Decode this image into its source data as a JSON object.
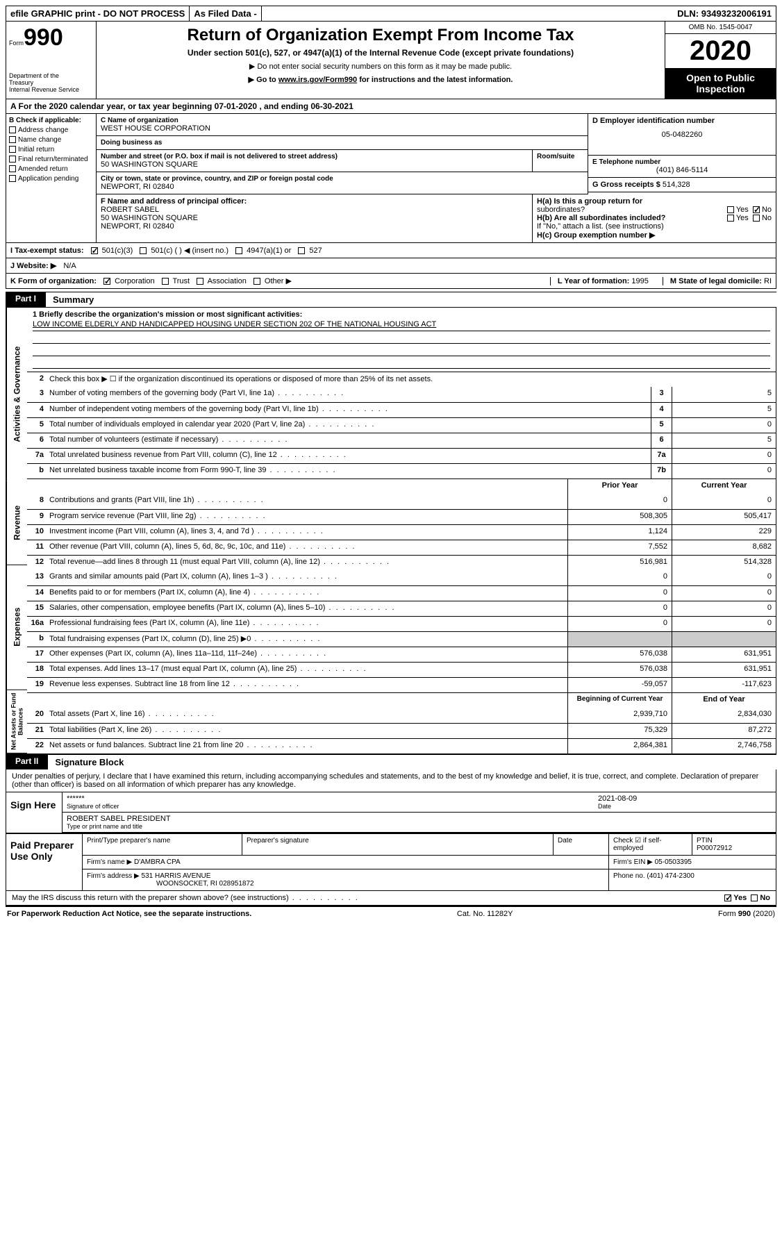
{
  "topbar": {
    "efile": "efile GRAPHIC print - DO NOT PROCESS",
    "asfiled": "As Filed Data -",
    "dln_label": "DLN:",
    "dln": "93493232006191"
  },
  "header": {
    "form_prefix": "Form",
    "form_number": "990",
    "dept1": "Department of the",
    "dept2": "Treasury",
    "dept3": "Internal Revenue Service",
    "title": "Return of Organization Exempt From Income Tax",
    "subtitle": "Under section 501(c), 527, or 4947(a)(1) of the Internal Revenue Code (except private foundations)",
    "note1": "▶ Do not enter social security numbers on this form as it may be made public.",
    "note2_pre": "▶ Go to ",
    "note2_link": "www.irs.gov/Form990",
    "note2_post": " for instructions and the latest information.",
    "omb": "OMB No. 1545-0047",
    "year": "2020",
    "inspect": "Open to Public Inspection"
  },
  "row_a": "A   For the 2020 calendar year, or tax year beginning 07-01-2020   , and ending 06-30-2021",
  "col_b": {
    "label": "B Check if applicable:",
    "items": [
      "Address change",
      "Name change",
      "Initial return",
      "Final return/terminated",
      "Amended return",
      "Application pending"
    ]
  },
  "col_c": {
    "c_label": "C Name of organization",
    "org": "WEST HOUSE CORPORATION",
    "dba_label": "Doing business as",
    "addr_label": "Number and street (or P.O. box if mail is not delivered to street address)",
    "room_label": "Room/suite",
    "addr": "50 WASHINGTON SQUARE",
    "city_label": "City or town, state or province, country, and ZIP or foreign postal code",
    "city": "NEWPORT, RI  02840",
    "f_label": "F  Name and address of principal officer:",
    "f_name": "ROBERT SABEL",
    "f_addr1": "50 WASHINGTON SQUARE",
    "f_addr2": "NEWPORT, RI  02840"
  },
  "col_d": {
    "d_label": "D Employer identification number",
    "ein": "05-0482260",
    "e_label": "E Telephone number",
    "phone": "(401) 846-5114",
    "g_label": "G Gross receipts $",
    "gross": "514,328"
  },
  "h": {
    "ha_label": "H(a)  Is this a group return for",
    "ha_sub": "subordinates?",
    "hb_label": "H(b)  Are all subordinates included?",
    "hb_note": "If \"No,\" attach a list. (see instructions)",
    "hc_label": "H(c)  Group exemption number ▶",
    "yes": "Yes",
    "no": "No"
  },
  "row_i": {
    "label": "I   Tax-exempt status:",
    "opts": [
      "501(c)(3)",
      "501(c) (   ) ◀ (insert no.)",
      "4947(a)(1) or",
      "527"
    ]
  },
  "row_j": {
    "label": "J   Website: ▶",
    "value": "N/A"
  },
  "row_k": {
    "label": "K Form of organization:",
    "opts": [
      "Corporation",
      "Trust",
      "Association",
      "Other ▶"
    ],
    "l_label": "L Year of formation:",
    "l_val": "1995",
    "m_label": "M State of legal domicile:",
    "m_val": "RI"
  },
  "part1": {
    "tag": "Part I",
    "title": "Summary"
  },
  "part2": {
    "tag": "Part II",
    "title": "Signature Block"
  },
  "vtabs": [
    "Activities & Governance",
    "Revenue",
    "Expenses",
    "Net Assets or Fund Balances"
  ],
  "summary": {
    "l1_label": "1 Briefly describe the organization's mission or most significant activities:",
    "l1_text": "LOW INCOME ELDERLY AND HANDICAPPED HOUSING UNDER SECTION 202 OF THE NATIONAL HOUSING ACT",
    "l2": "Check this box ▶ ☐ if the organization discontinued its operations or disposed of more than 25% of its net assets.",
    "lines_ag": [
      {
        "n": "3",
        "t": "Number of voting members of the governing body (Part VI, line 1a)",
        "box": "3",
        "v": "5"
      },
      {
        "n": "4",
        "t": "Number of independent voting members of the governing body (Part VI, line 1b)",
        "box": "4",
        "v": "5"
      },
      {
        "n": "5",
        "t": "Total number of individuals employed in calendar year 2020 (Part V, line 2a)",
        "box": "5",
        "v": "0"
      },
      {
        "n": "6",
        "t": "Total number of volunteers (estimate if necessary)",
        "box": "6",
        "v": "5"
      },
      {
        "n": "7a",
        "t": "Total unrelated business revenue from Part VIII, column (C), line 12",
        "box": "7a",
        "v": "0"
      },
      {
        "n": "b",
        "t": "Net unrelated business taxable income from Form 990-T, line 39",
        "box": "7b",
        "v": "0"
      }
    ],
    "hdr_prior": "Prior Year",
    "hdr_current": "Current Year",
    "lines_rev": [
      {
        "n": "8",
        "t": "Contributions and grants (Part VIII, line 1h)",
        "p": "0",
        "c": "0"
      },
      {
        "n": "9",
        "t": "Program service revenue (Part VIII, line 2g)",
        "p": "508,305",
        "c": "505,417"
      },
      {
        "n": "10",
        "t": "Investment income (Part VIII, column (A), lines 3, 4, and 7d )",
        "p": "1,124",
        "c": "229"
      },
      {
        "n": "11",
        "t": "Other revenue (Part VIII, column (A), lines 5, 6d, 8c, 9c, 10c, and 11e)",
        "p": "7,552",
        "c": "8,682"
      },
      {
        "n": "12",
        "t": "Total revenue—add lines 8 through 11 (must equal Part VIII, column (A), line 12)",
        "p": "516,981",
        "c": "514,328"
      }
    ],
    "lines_exp": [
      {
        "n": "13",
        "t": "Grants and similar amounts paid (Part IX, column (A), lines 1–3 )",
        "p": "0",
        "c": "0"
      },
      {
        "n": "14",
        "t": "Benefits paid to or for members (Part IX, column (A), line 4)",
        "p": "0",
        "c": "0"
      },
      {
        "n": "15",
        "t": "Salaries, other compensation, employee benefits (Part IX, column (A), lines 5–10)",
        "p": "0",
        "c": "0"
      },
      {
        "n": "16a",
        "t": "Professional fundraising fees (Part IX, column (A), line 11e)",
        "p": "0",
        "c": "0"
      },
      {
        "n": "b",
        "t": "Total fundraising expenses (Part IX, column (D), line 25) ▶0",
        "p": "",
        "c": ""
      },
      {
        "n": "17",
        "t": "Other expenses (Part IX, column (A), lines 11a–11d, 11f–24e)",
        "p": "576,038",
        "c": "631,951"
      },
      {
        "n": "18",
        "t": "Total expenses. Add lines 13–17 (must equal Part IX, column (A), line 25)",
        "p": "576,038",
        "c": "631,951"
      },
      {
        "n": "19",
        "t": "Revenue less expenses. Subtract line 18 from line 12",
        "p": "-59,057",
        "c": "-117,623"
      }
    ],
    "hdr_beg": "Beginning of Current Year",
    "hdr_end": "End of Year",
    "lines_net": [
      {
        "n": "20",
        "t": "Total assets (Part X, line 16)",
        "p": "2,939,710",
        "c": "2,834,030"
      },
      {
        "n": "21",
        "t": "Total liabilities (Part X, line 26)",
        "p": "75,329",
        "c": "87,272"
      },
      {
        "n": "22",
        "t": "Net assets or fund balances. Subtract line 21 from line 20",
        "p": "2,864,381",
        "c": "2,746,758"
      }
    ]
  },
  "sig": {
    "intro": "Under penalties of perjury, I declare that I have examined this return, including accompanying schedules and statements, and to the best of my knowledge and belief, it is true, correct, and complete. Declaration of preparer (other than officer) is based on all information of which preparer has any knowledge.",
    "sign_here": "Sign Here",
    "stars": "******",
    "sig_of_officer": "Signature of officer",
    "date_label": "Date",
    "date": "2021-08-09",
    "name_title": "ROBERT SABEL PRESIDENT",
    "name_caption": "Type or print name and title",
    "paid_label": "Paid Preparer Use Only",
    "prep_name_label": "Print/Type preparer's name",
    "prep_sig_label": "Preparer's signature",
    "check_if": "Check ☑ if self-employed",
    "ptin_label": "PTIN",
    "ptin": "P00072912",
    "firm_name_label": "Firm's name   ▶",
    "firm_name": "D'AMBRA CPA",
    "firm_ein_label": "Firm's EIN ▶",
    "firm_ein": "05-0503395",
    "firm_addr_label": "Firm's address ▶",
    "firm_addr1": "531 HARRIS AVENUE",
    "firm_addr2": "WOONSOCKET, RI  028951872",
    "firm_phone_label": "Phone no.",
    "firm_phone": "(401) 474-2300",
    "discuss": "May the IRS discuss this return with the preparer shown above? (see instructions)",
    "yes": "Yes",
    "no": "No"
  },
  "footer": {
    "left": "For Paperwork Reduction Act Notice, see the separate instructions.",
    "mid": "Cat. No. 11282Y",
    "right_pre": "Form ",
    "right_form": "990",
    "right_post": " (2020)"
  }
}
